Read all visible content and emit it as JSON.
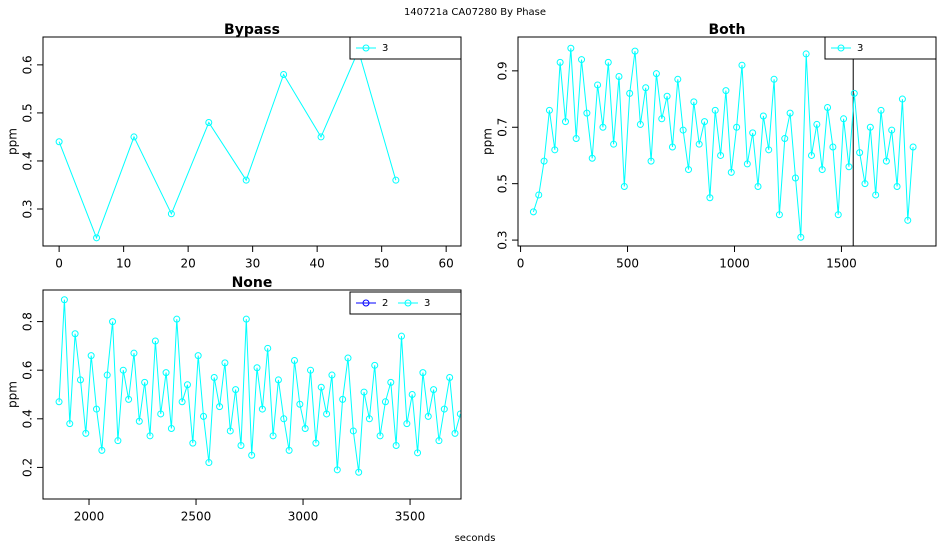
{
  "title": "140721a   CA07280   By Phase",
  "xlabel": "seconds",
  "chart_data": [
    {
      "type": "line",
      "title": "Bypass",
      "ylabel": "ppm",
      "legend": "topright",
      "xlim": [
        -2.5,
        62.3
      ],
      "ylim": [
        0.223,
        0.658
      ],
      "xticks": [
        0,
        10,
        20,
        30,
        40,
        50,
        60
      ],
      "yticks": [
        0.3,
        0.4,
        0.5,
        0.6
      ],
      "series": [
        {
          "name": "3",
          "color": "#00ffff",
          "x": [
            0,
            5.8,
            11.6,
            17.4,
            23.2,
            29,
            34.8,
            40.6,
            46.4,
            52.2
          ],
          "values": [
            0.44,
            0.24,
            0.45,
            0.29,
            0.48,
            0.36,
            0.58,
            0.45,
            0.63,
            0.36
          ]
        }
      ]
    },
    {
      "type": "line",
      "title": "Both",
      "ylabel": "ppm",
      "legend": "topright",
      "xlim": [
        -12,
        1942
      ],
      "ylim": [
        0.279,
        1.02
      ],
      "xticks": [
        0,
        500,
        1000,
        1500
      ],
      "yticks": [
        0.3,
        0.5,
        0.7,
        0.9
      ],
      "vlines": [
        1555
      ],
      "series": [
        {
          "name": "3",
          "color": "#00ffff",
          "x": [
            60,
            85,
            110,
            135,
            160,
            185,
            210,
            235,
            260,
            285,
            310,
            335,
            360,
            385,
            410,
            435,
            460,
            485,
            510,
            535,
            560,
            585,
            610,
            635,
            660,
            685,
            710,
            735,
            760,
            785,
            810,
            835,
            860,
            885,
            910,
            935,
            960,
            985,
            1010,
            1035,
            1060,
            1085,
            1110,
            1135,
            1160,
            1185,
            1210,
            1235,
            1260,
            1285,
            1310,
            1335,
            1360,
            1385,
            1410,
            1435,
            1460,
            1485,
            1510,
            1535,
            1560,
            1585,
            1610,
            1635,
            1660,
            1685,
            1710,
            1735,
            1760,
            1785,
            1810,
            1835
          ],
          "values": [
            0.4,
            0.46,
            0.58,
            0.76,
            0.62,
            0.93,
            0.72,
            0.98,
            0.66,
            0.94,
            0.75,
            0.59,
            0.85,
            0.7,
            0.93,
            0.64,
            0.88,
            0.49,
            0.82,
            0.97,
            0.71,
            0.84,
            0.58,
            0.89,
            0.73,
            0.81,
            0.63,
            0.87,
            0.69,
            0.55,
            0.79,
            0.64,
            0.72,
            0.45,
            0.76,
            0.6,
            0.83,
            0.54,
            0.7,
            0.92,
            0.57,
            0.68,
            0.49,
            0.74,
            0.62,
            0.87,
            0.39,
            0.66,
            0.75,
            0.52,
            0.31,
            0.96,
            0.6,
            0.71,
            0.55,
            0.77,
            0.63,
            0.39,
            0.73,
            0.56,
            0.82,
            0.61,
            0.5,
            0.7,
            0.46,
            0.76,
            0.58,
            0.69,
            0.49,
            0.8,
            0.37,
            0.63
          ]
        }
      ]
    },
    {
      "type": "line",
      "title": "None",
      "ylabel": "ppm",
      "legend": "topright",
      "xlim": [
        1785,
        3738
      ],
      "ylim": [
        0.07,
        0.93
      ],
      "xticks": [
        2000,
        2500,
        3000,
        3500
      ],
      "yticks": [
        0.2,
        0.4,
        0.6,
        0.8
      ],
      "series": [
        {
          "name": "2",
          "color": "#0000ff",
          "x": [],
          "values": []
        },
        {
          "name": "3",
          "color": "#00ffff",
          "x": [
            1860,
            1885,
            1910,
            1935,
            1960,
            1985,
            2010,
            2035,
            2060,
            2085,
            2110,
            2135,
            2160,
            2185,
            2210,
            2235,
            2260,
            2285,
            2310,
            2335,
            2360,
            2385,
            2410,
            2435,
            2460,
            2485,
            2510,
            2535,
            2560,
            2585,
            2610,
            2635,
            2660,
            2685,
            2710,
            2735,
            2760,
            2785,
            2810,
            2835,
            2860,
            2885,
            2910,
            2935,
            2960,
            2985,
            3010,
            3035,
            3060,
            3085,
            3110,
            3135,
            3160,
            3185,
            3210,
            3235,
            3260,
            3285,
            3310,
            3335,
            3360,
            3385,
            3410,
            3435,
            3460,
            3485,
            3510,
            3535,
            3560,
            3585,
            3610,
            3635,
            3660,
            3685,
            3710,
            3735
          ],
          "values": [
            0.47,
            0.89,
            0.38,
            0.75,
            0.56,
            0.34,
            0.66,
            0.44,
            0.27,
            0.58,
            0.8,
            0.31,
            0.6,
            0.48,
            0.67,
            0.39,
            0.55,
            0.33,
            0.72,
            0.42,
            0.59,
            0.36,
            0.81,
            0.47,
            0.54,
            0.3,
            0.66,
            0.41,
            0.22,
            0.57,
            0.45,
            0.63,
            0.35,
            0.52,
            0.29,
            0.81,
            0.25,
            0.61,
            0.44,
            0.69,
            0.33,
            0.56,
            0.4,
            0.27,
            0.64,
            0.46,
            0.36,
            0.6,
            0.3,
            0.53,
            0.42,
            0.58,
            0.19,
            0.48,
            0.65,
            0.35,
            0.18,
            0.51,
            0.4,
            0.62,
            0.33,
            0.47,
            0.55,
            0.29,
            0.74,
            0.38,
            0.5,
            0.26,
            0.59,
            0.41,
            0.52,
            0.31,
            0.44,
            0.57,
            0.34,
            0.42
          ]
        }
      ]
    }
  ]
}
